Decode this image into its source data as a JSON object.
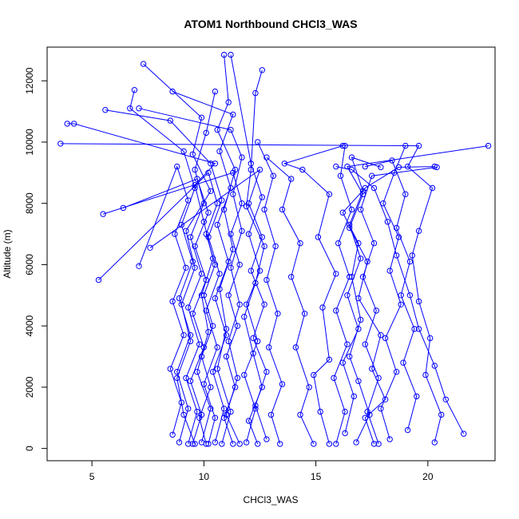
{
  "chart_data": {
    "type": "line",
    "title": "ATOM1 Northbound CHCl3_WAS",
    "xlabel": "CHCl3_WAS",
    "ylabel": "Altitude (m)",
    "xlim": [
      3.0,
      23.0
    ],
    "ylim": [
      -400,
      13100
    ],
    "x_ticks": [
      5,
      10,
      15,
      20
    ],
    "y_ticks": [
      0,
      2000,
      4000,
      6000,
      8000,
      10000,
      12000
    ],
    "grid": false,
    "legend": "none",
    "colors": {
      "series": "#0000ff",
      "axis": "#000000"
    },
    "marker": "open-circle",
    "series": [
      {
        "points": [
          [
            10.8,
            150
          ],
          [
            11.2,
            1200
          ],
          [
            10.6,
            2600
          ],
          [
            11.0,
            3900
          ],
          [
            10.7,
            5200
          ],
          [
            11.3,
            6500
          ],
          [
            10.9,
            7800
          ],
          [
            11.4,
            9100
          ],
          [
            10.6,
            10400
          ],
          [
            11.1,
            11300
          ],
          [
            10.9,
            12850
          ]
        ]
      },
      {
        "points": [
          [
            9.6,
            150
          ],
          [
            9.1,
            1100
          ],
          [
            8.8,
            2300
          ],
          [
            9.4,
            3500
          ],
          [
            9.0,
            4700
          ],
          [
            9.6,
            5900
          ],
          [
            9.2,
            7100
          ],
          [
            10.3,
            8400
          ],
          [
            9.5,
            9600
          ],
          [
            9.9,
            10800
          ],
          [
            7.3,
            12550
          ]
        ]
      },
      {
        "points": [
          [
            17.6,
            150
          ],
          [
            17.2,
            1000
          ],
          [
            18.1,
            1600
          ],
          [
            17.5,
            2600
          ],
          [
            17.9,
            3700
          ],
          [
            16.9,
            4900
          ],
          [
            17.3,
            6100
          ],
          [
            16.5,
            7200
          ],
          [
            17.1,
            8300
          ],
          [
            16.4,
            9200
          ],
          [
            22.7,
            9880
          ]
        ]
      },
      {
        "points": [
          [
            15.6,
            150
          ],
          [
            15.2,
            1200
          ],
          [
            14.9,
            2400
          ],
          [
            15.6,
            2900
          ],
          [
            15.3,
            4600
          ],
          [
            15.9,
            5700
          ],
          [
            15.1,
            6900
          ],
          [
            15.6,
            8300
          ],
          [
            14.4,
            9100
          ],
          [
            13.6,
            9300
          ],
          [
            16.2,
            9880
          ]
        ]
      },
      {
        "points": [
          [
            20.3,
            200
          ],
          [
            20.6,
            1100
          ],
          [
            19.9,
            2400
          ],
          [
            20.1,
            3600
          ],
          [
            19.6,
            4800
          ],
          [
            19.3,
            6300
          ],
          [
            19.6,
            7100
          ],
          [
            20.2,
            8500
          ],
          [
            19.1,
            9200
          ],
          [
            19.6,
            9880
          ],
          [
            3.6,
            9950
          ]
        ]
      },
      {
        "points": [
          [
            12.4,
            150
          ],
          [
            12.0,
            900
          ],
          [
            12.6,
            2000
          ],
          [
            12.2,
            3100
          ],
          [
            11.8,
            4300
          ],
          [
            12.3,
            5400
          ],
          [
            12.7,
            6600
          ],
          [
            11.9,
            7900
          ],
          [
            12.1,
            9100
          ],
          [
            12.3,
            11600
          ],
          [
            12.6,
            12350
          ]
        ]
      },
      {
        "points": [
          [
            9.9,
            200
          ],
          [
            10.3,
            1300
          ],
          [
            9.7,
            2500
          ],
          [
            10.2,
            3800
          ],
          [
            9.9,
            5000
          ],
          [
            10.4,
            6200
          ],
          [
            10.0,
            7400
          ],
          [
            9.6,
            8600
          ],
          [
            10.5,
            9300
          ],
          [
            4.2,
            10600
          ],
          [
            3.9,
            10600
          ]
        ]
      },
      {
        "points": [
          [
            16.8,
            200
          ],
          [
            17.4,
            1100
          ],
          [
            16.9,
            2200
          ],
          [
            16.5,
            3000
          ],
          [
            17.0,
            4200
          ],
          [
            16.6,
            5600
          ],
          [
            16.9,
            6700
          ],
          [
            16.2,
            7700
          ],
          [
            17.2,
            8500
          ],
          [
            18.7,
            9180
          ],
          [
            20.3,
            9200
          ]
        ]
      },
      {
        "points": [
          [
            11.6,
            150
          ],
          [
            11.0,
            1100
          ],
          [
            11.5,
            2300
          ],
          [
            11.1,
            3500
          ],
          [
            11.6,
            4700
          ],
          [
            11.2,
            5900
          ],
          [
            11.7,
            7100
          ],
          [
            11.3,
            8300
          ],
          [
            11.7,
            9500
          ],
          [
            11.2,
            10400
          ],
          [
            7.1,
            11100
          ]
        ]
      },
      {
        "points": [
          [
            10.2,
            150
          ],
          [
            10.5,
            1000
          ],
          [
            10.0,
            2100
          ],
          [
            10.6,
            3300
          ],
          [
            10.1,
            4500
          ],
          [
            10.7,
            5700
          ],
          [
            10.2,
            6900
          ],
          [
            10.8,
            8100
          ],
          [
            10.3,
            9300
          ],
          [
            8.5,
            10700
          ],
          [
            5.6,
            11050
          ]
        ]
      },
      {
        "points": [
          [
            18.3,
            300
          ],
          [
            17.9,
            1300
          ],
          [
            18.6,
            2500
          ],
          [
            18.1,
            3600
          ],
          [
            18.8,
            4700
          ],
          [
            18.3,
            5800
          ],
          [
            18.7,
            6900
          ],
          [
            18.0,
            8000
          ],
          [
            18.5,
            9000
          ],
          [
            19.0,
            9880
          ]
        ]
      },
      {
        "points": [
          [
            14.9,
            150
          ],
          [
            14.3,
            1100
          ],
          [
            14.7,
            2000
          ],
          [
            14.1,
            3300
          ],
          [
            14.5,
            4400
          ],
          [
            13.9,
            5600
          ],
          [
            14.3,
            6700
          ],
          [
            13.5,
            7800
          ],
          [
            13.9,
            8800
          ],
          [
            12.8,
            9500
          ]
        ]
      },
      {
        "points": [
          [
            9.3,
            150
          ],
          [
            9.7,
            1200
          ],
          [
            9.2,
            2300
          ],
          [
            9.8,
            3400
          ],
          [
            9.3,
            4600
          ],
          [
            9.9,
            5700
          ],
          [
            9.4,
            6900
          ],
          [
            10.0,
            8000
          ],
          [
            9.6,
            9100
          ],
          [
            10.1,
            10300
          ],
          [
            10.5,
            11650
          ]
        ]
      },
      {
        "points": [
          [
            21.6,
            480
          ],
          [
            20.8,
            1600
          ],
          [
            20.3,
            2700
          ],
          [
            19.6,
            3900
          ],
          [
            19.2,
            5000
          ],
          [
            18.6,
            6300
          ],
          [
            18.2,
            7400
          ],
          [
            17.6,
            8500
          ],
          [
            16.6,
            9100
          ],
          [
            15.9,
            9200
          ]
        ]
      },
      {
        "points": [
          [
            11.9,
            200
          ],
          [
            12.3,
            1300
          ],
          [
            11.8,
            2400
          ],
          [
            12.4,
            3500
          ],
          [
            11.9,
            4700
          ],
          [
            12.5,
            5800
          ],
          [
            12.0,
            7000
          ],
          [
            12.6,
            8200
          ],
          [
            12.1,
            9300
          ],
          [
            11.2,
            12850
          ]
        ]
      },
      {
        "points": [
          [
            16.3,
            500
          ],
          [
            16.7,
            1700
          ],
          [
            16.2,
            2800
          ],
          [
            16.9,
            3900
          ],
          [
            16.4,
            5000
          ],
          [
            17.0,
            6200
          ],
          [
            16.5,
            7300
          ],
          [
            17.1,
            8400
          ],
          [
            16.6,
            9500
          ],
          [
            17.9,
            9180
          ]
        ]
      },
      {
        "points": [
          [
            10.5,
            200
          ],
          [
            10.9,
            1300
          ],
          [
            10.4,
            2500
          ],
          [
            11.0,
            3700
          ],
          [
            10.5,
            4900
          ],
          [
            11.1,
            6100
          ],
          [
            10.6,
            7300
          ],
          [
            11.2,
            8500
          ],
          [
            10.7,
            9700
          ],
          [
            11.3,
            10900
          ],
          [
            8.6,
            11650
          ]
        ]
      },
      {
        "points": [
          [
            8.9,
            200
          ],
          [
            9.3,
            1300
          ],
          [
            8.8,
            2500
          ],
          [
            9.4,
            3700
          ],
          [
            8.9,
            4900
          ],
          [
            9.5,
            6100
          ],
          [
            9.0,
            7300
          ],
          [
            9.6,
            8500
          ],
          [
            9.1,
            9700
          ],
          [
            6.7,
            11100
          ],
          [
            6.9,
            11700
          ]
        ]
      },
      {
        "points": [
          [
            13.4,
            150
          ],
          [
            13.0,
            1100
          ],
          [
            13.5,
            2100
          ],
          [
            12.9,
            3300
          ],
          [
            13.3,
            4400
          ],
          [
            12.8,
            5500
          ],
          [
            13.2,
            6600
          ],
          [
            12.7,
            7800
          ],
          [
            13.1,
            8900
          ],
          [
            12.4,
            10000
          ]
        ]
      },
      {
        "points": [
          [
            19.1,
            600
          ],
          [
            19.5,
            1700
          ],
          [
            18.9,
            2800
          ],
          [
            19.4,
            3900
          ],
          [
            18.8,
            5000
          ],
          [
            19.2,
            6100
          ],
          [
            18.6,
            7200
          ],
          [
            19.0,
            8300
          ],
          [
            18.4,
            9400
          ],
          [
            17.2,
            9200
          ]
        ]
      },
      {
        "points": [
          [
            10.1,
            150
          ],
          [
            9.8,
            1000
          ],
          [
            10.3,
            2000
          ],
          [
            9.9,
            3000
          ],
          [
            10.4,
            4000
          ],
          [
            10.0,
            5000
          ],
          [
            10.5,
            6000
          ],
          [
            10.1,
            7000
          ],
          [
            10.6,
            8000
          ],
          [
            10.2,
            9000
          ],
          [
            5.3,
            5500
          ]
        ]
      },
      {
        "points": [
          [
            11.3,
            150
          ],
          [
            10.9,
            1000
          ],
          [
            11.4,
            2000
          ],
          [
            11.0,
            3000
          ],
          [
            11.5,
            4000
          ],
          [
            11.1,
            5000
          ],
          [
            11.6,
            6000
          ],
          [
            11.2,
            7000
          ],
          [
            11.7,
            8000
          ],
          [
            11.3,
            9000
          ],
          [
            5.5,
            7650
          ]
        ]
      },
      {
        "points": [
          [
            15.9,
            150
          ],
          [
            16.3,
            1200
          ],
          [
            15.8,
            2300
          ],
          [
            16.4,
            3400
          ],
          [
            15.9,
            4500
          ],
          [
            16.5,
            5600
          ],
          [
            16.0,
            6700
          ],
          [
            16.6,
            7800
          ],
          [
            16.1,
            8900
          ],
          [
            16.3,
            9880
          ]
        ]
      },
      {
        "points": [
          [
            9.5,
            150
          ],
          [
            9.9,
            1100
          ],
          [
            9.4,
            2200
          ],
          [
            10.0,
            3300
          ],
          [
            9.5,
            4400
          ],
          [
            10.1,
            5500
          ],
          [
            9.6,
            6600
          ],
          [
            10.2,
            7700
          ],
          [
            9.7,
            8800
          ],
          [
            6.4,
            7850
          ]
        ]
      },
      {
        "points": [
          [
            12.8,
            300
          ],
          [
            12.3,
            1400
          ],
          [
            12.8,
            2500
          ],
          [
            12.2,
            3600
          ],
          [
            12.7,
            4700
          ],
          [
            12.1,
            5800
          ],
          [
            12.6,
            6900
          ],
          [
            12.0,
            8000
          ],
          [
            12.5,
            9100
          ],
          [
            7.6,
            6550
          ]
        ]
      },
      {
        "points": [
          [
            17.8,
            150
          ],
          [
            17.3,
            1200
          ],
          [
            17.8,
            2300
          ],
          [
            17.2,
            3400
          ],
          [
            17.7,
            4500
          ],
          [
            17.1,
            5600
          ],
          [
            17.6,
            6700
          ],
          [
            17.0,
            7800
          ],
          [
            17.5,
            8900
          ],
          [
            20.4,
            9180
          ]
        ]
      },
      {
        "points": [
          [
            8.6,
            450
          ],
          [
            9.0,
            1500
          ],
          [
            8.5,
            2600
          ],
          [
            9.1,
            3700
          ],
          [
            8.6,
            4800
          ],
          [
            9.2,
            5900
          ],
          [
            8.7,
            7000
          ],
          [
            9.3,
            8100
          ],
          [
            8.8,
            9200
          ],
          [
            7.1,
            5950
          ]
        ]
      }
    ]
  }
}
